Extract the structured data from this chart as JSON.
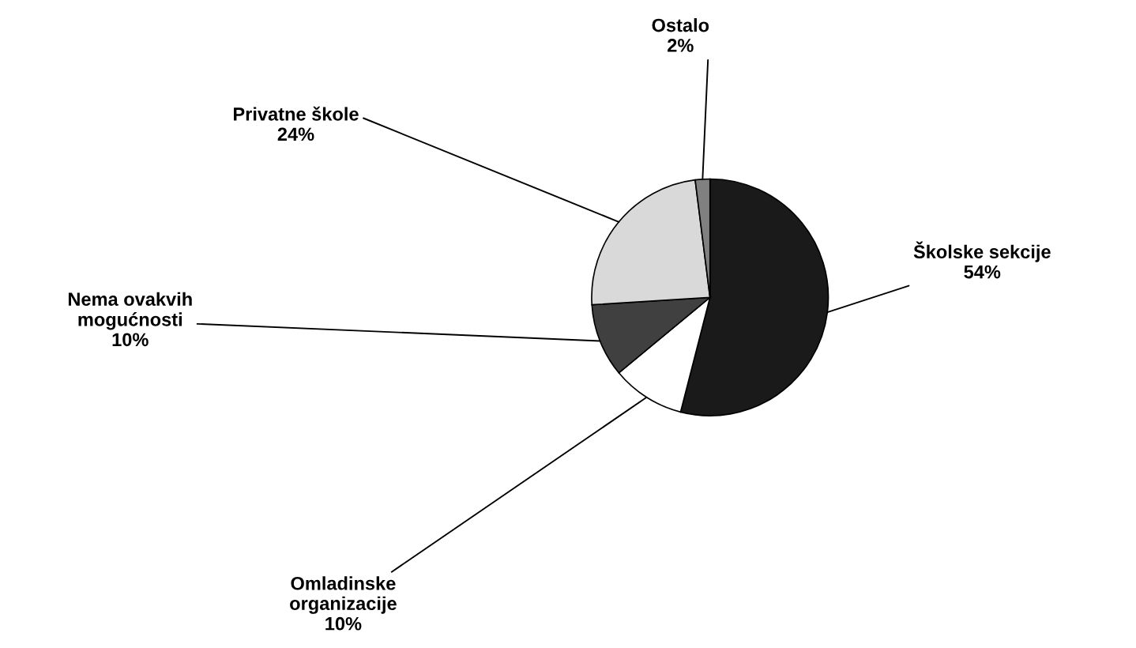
{
  "chart_data": {
    "type": "pie",
    "categories": [
      "Školske sekcije",
      "Omladinske organizacije",
      "Nema ovakvih mogućnosti",
      "Privatne škole",
      "Ostalo"
    ],
    "values": [
      54,
      10,
      10,
      24,
      2
    ],
    "value_labels": [
      "54%",
      "10%",
      "10%",
      "24%",
      "2%"
    ],
    "colors": [
      "#1a1a1a",
      "#ffffff",
      "#404040",
      "#d9d9d9",
      "#808080"
    ],
    "legend": false
  }
}
